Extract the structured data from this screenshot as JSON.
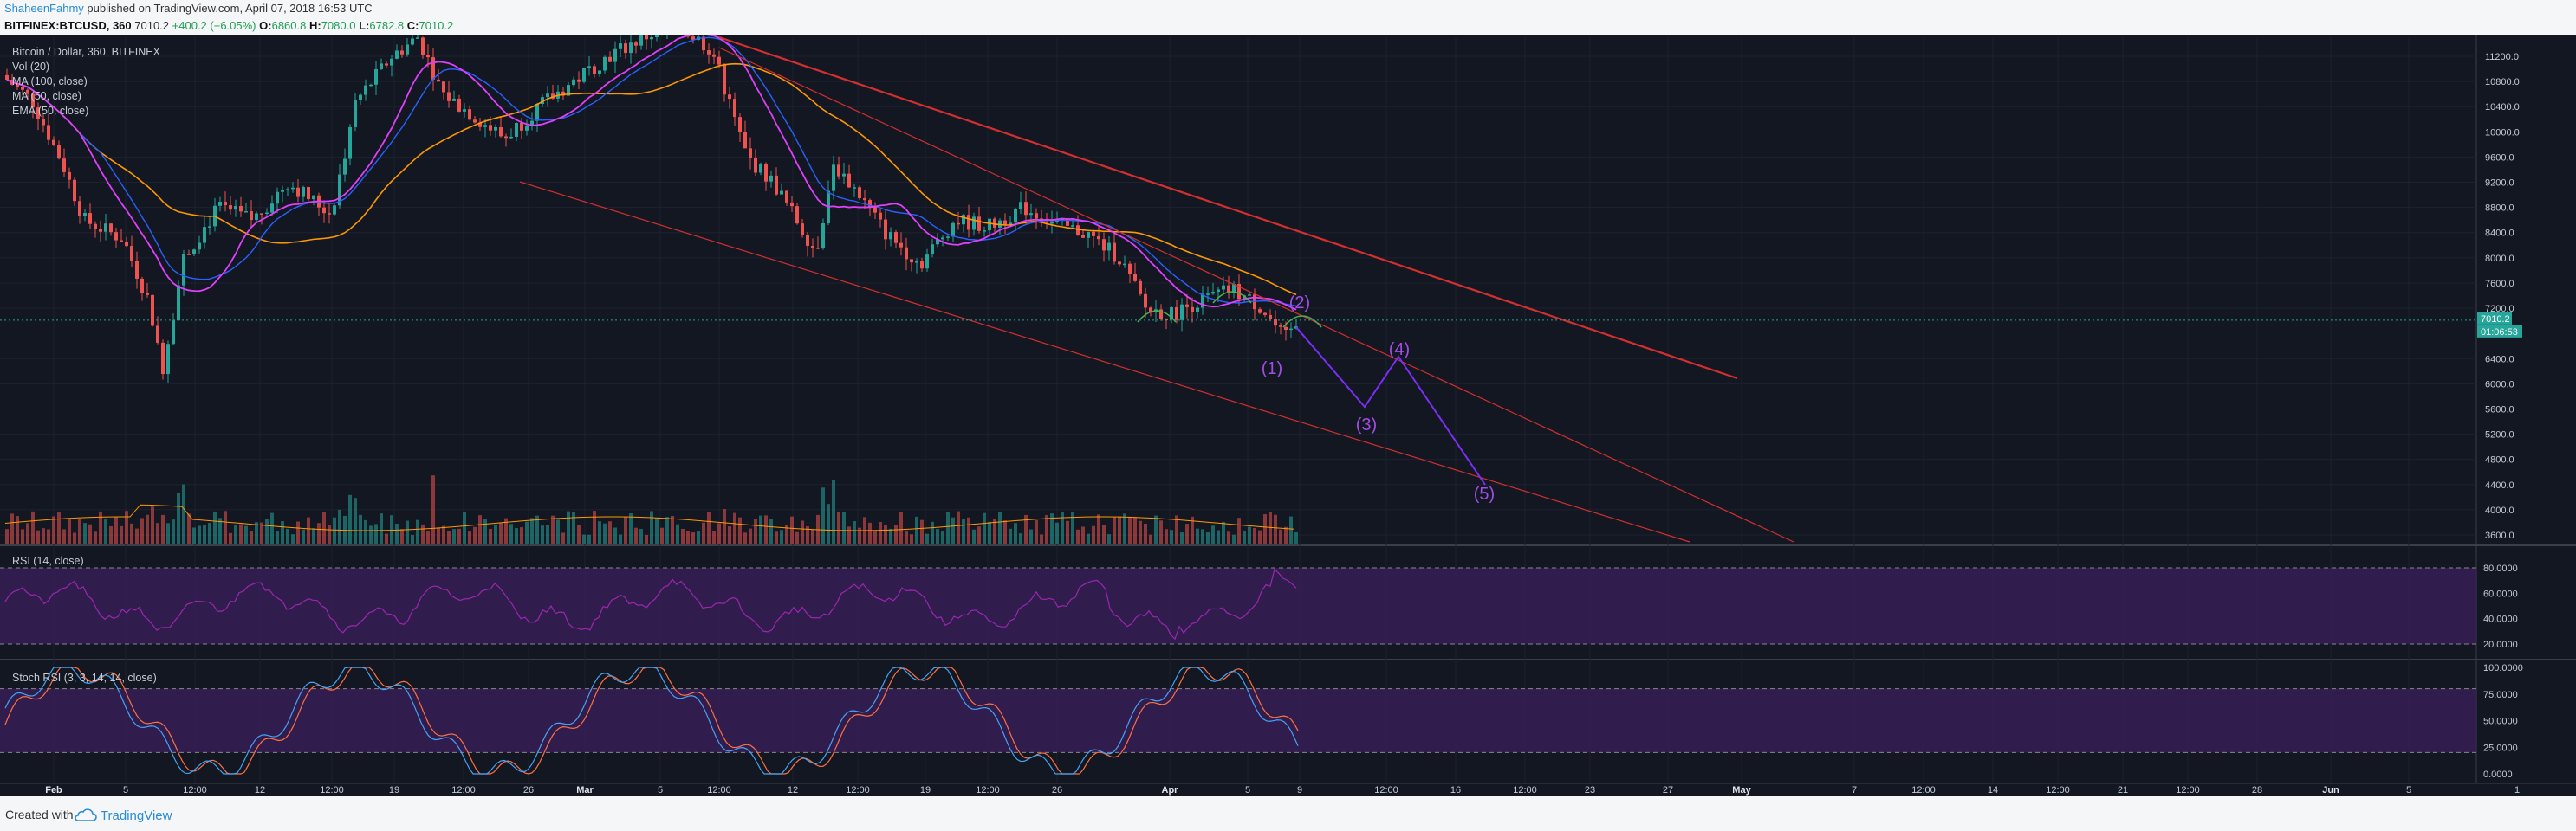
{
  "header": {
    "author": "ShaheenFahmy",
    "published": " published on TradingView.com, April 07, 2018 16:53 UTC",
    "symbol": "BITFINEX:BTCUSD, 360",
    "last": "7010.2",
    "change": "+400.2 (+6.05%)",
    "open_label": "O:",
    "open": "6860.8",
    "high_label": "H:",
    "high": "7080.0",
    "low_label": "L:",
    "low": "6782.8",
    "close_label": "C:",
    "close": "7010.2"
  },
  "legend": {
    "title": "Bitcoin / Dollar, 360, BITFINEX",
    "vol": "Vol (20)",
    "ma100": "MA (100, close)",
    "ma50": "MA (50, close)",
    "ema50": "EMA (50, close)",
    "rsi": "RSI (14, close)",
    "stoch": "Stoch RSI (3, 3, 14, 14, close)"
  },
  "price_axis": {
    "ticks": [
      "11200.0",
      "10800.0",
      "10400.0",
      "10000.0",
      "9600.0",
      "9200.0",
      "8800.0",
      "8400.0",
      "8000.0",
      "7600.0",
      "7200.0",
      "6400.0",
      "6000.0",
      "5600.0",
      "5200.0",
      "4800.0",
      "4400.0",
      "4000.0",
      "3600.0"
    ],
    "last_label": "7010.2",
    "countdown_label": "01:06:53"
  },
  "rsi_axis": {
    "ticks": [
      "80.0000",
      "60.0000",
      "40.0000",
      "20.0000"
    ]
  },
  "stoch_axis": {
    "ticks": [
      "100.0000",
      "75.0000",
      "50.0000",
      "25.0000",
      "0.0000"
    ]
  },
  "time_axis": {
    "ticks": [
      "Feb",
      "5",
      "12:00",
      "12",
      "12:00",
      "19",
      "12:00",
      "26",
      "Mar",
      "5",
      "12:00",
      "12",
      "12:00",
      "19",
      "12:00",
      "26",
      "Apr",
      "5",
      "9",
      "12:00",
      "16",
      "12:00",
      "23",
      "27",
      "May",
      "7",
      "12:00",
      "14",
      "12:00",
      "21",
      "12:00",
      "28",
      "Jun",
      "5",
      "1"
    ]
  },
  "wave_labels": [
    "(1)",
    "(2)",
    "(3)",
    "(4)",
    "(5)"
  ],
  "colors": {
    "background": "#131722",
    "up": "#26a69a",
    "down": "#ef5350",
    "channel": "#d32f2f",
    "wave": "#9c27b0",
    "ma100": "#ff9800",
    "ma50": "#2962ff",
    "ema50": "#e040fb",
    "rsi_fill": "#3a1e5a"
  },
  "footer": {
    "created": "Created with",
    "brand": "TradingView"
  }
}
